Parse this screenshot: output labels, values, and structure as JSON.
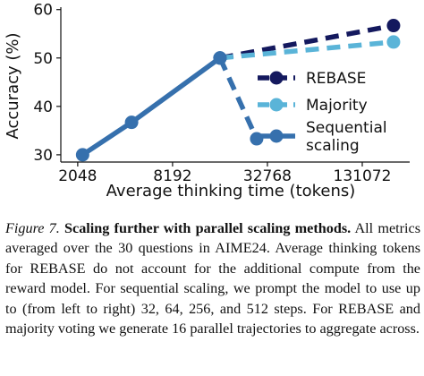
{
  "chart_data": {
    "type": "line",
    "xscale": "log2",
    "xlabel": "Average thinking time (tokens)",
    "ylabel": "Accuracy (%)",
    "xticks": [
      2048,
      8192,
      32768,
      131072
    ],
    "xtick_labels": [
      "2048",
      "8192",
      "32768",
      "131072"
    ],
    "yticks": [
      30,
      40,
      50,
      60
    ],
    "ytick_labels": [
      "30",
      "40",
      "50",
      "60"
    ],
    "xlim": [
      1600,
      262144
    ],
    "ylim": [
      28.5,
      60.5
    ],
    "legend_position": "right",
    "series": [
      {
        "name": "REBASE",
        "color": "#14195e",
        "style": "dashed",
        "x": [
          16384,
          207000
        ],
        "y": [
          50.0,
          56.7
        ]
      },
      {
        "name": "Majority",
        "color": "#5ab4d8",
        "style": "dashed",
        "x": [
          16384,
          207000
        ],
        "y": [
          50.0,
          53.3
        ]
      },
      {
        "name": "Sequential\nscaling",
        "color": "#3670ad",
        "style": "solid",
        "x": [
          2200,
          4500,
          16384
        ],
        "y": [
          30.0,
          36.7,
          50.0
        ]
      },
      {
        "name": "",
        "color": "#3670ad",
        "style": "dashed",
        "x": [
          16384,
          28000
        ],
        "y": [
          50.0,
          33.3
        ]
      }
    ]
  },
  "caption": {
    "label": "Figure 7.",
    "title": "Scaling further with parallel scaling methods.",
    "body": "All metrics averaged over the 30 questions in AIME24. Average thinking tokens for REBASE do not account for the additional compute from the reward model. For sequential scaling, we prompt the model to use up to (from left to right) 32, 64, 256, and 512 steps. For REBASE and majority voting we generate 16 parallel trajectories to aggregate across."
  }
}
